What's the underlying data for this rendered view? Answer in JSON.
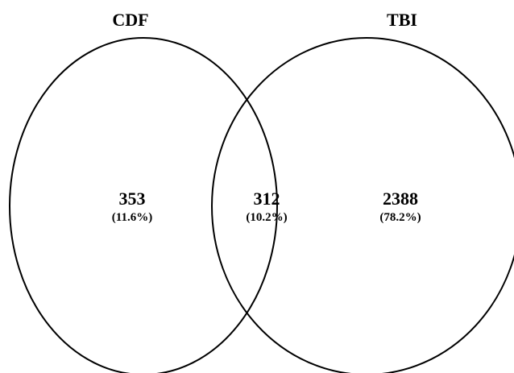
{
  "chart_data": {
    "type": "venn",
    "sets": [
      {
        "name": "CDF"
      },
      {
        "name": "TBI"
      }
    ],
    "regions": [
      {
        "id": "cdf_only",
        "sets": [
          "CDF"
        ],
        "count": "353",
        "percent": "(11.6%)"
      },
      {
        "id": "both",
        "sets": [
          "CDF",
          "TBI"
        ],
        "count": "312",
        "percent": "(10.2%)"
      },
      {
        "id": "tbi_only",
        "sets": [
          "TBI"
        ],
        "count": "2388",
        "percent": "(78.2%)"
      }
    ]
  },
  "colors": {
    "stroke": "#000000",
    "text": "#000000",
    "background": "#ffffff"
  }
}
